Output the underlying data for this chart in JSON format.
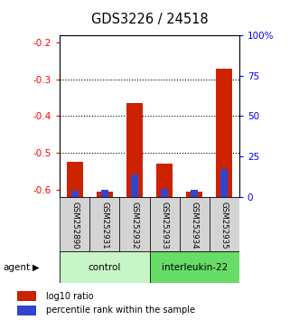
{
  "title": "GDS3226 / 24518",
  "samples": [
    "GSM252890",
    "GSM252931",
    "GSM252932",
    "GSM252933",
    "GSM252934",
    "GSM252935"
  ],
  "log10_ratio": [
    -0.525,
    -0.605,
    -0.365,
    -0.53,
    -0.605,
    -0.27
  ],
  "percentile_rank": [
    3.5,
    4.5,
    14.0,
    5.0,
    4.5,
    17.0
  ],
  "ylim_left": [
    -0.62,
    -0.18
  ],
  "ylim_right": [
    0,
    100
  ],
  "yticks_left": [
    -0.6,
    -0.5,
    -0.4,
    -0.3,
    -0.2
  ],
  "yticks_right": [
    0,
    25,
    50,
    75,
    100
  ],
  "ytick_labels_right": [
    "0",
    "25",
    "50",
    "75",
    "100%"
  ],
  "groups": [
    {
      "label": "control",
      "start": 0,
      "end": 2,
      "color": "#c8f5c8"
    },
    {
      "label": "interleukin-22",
      "start": 3,
      "end": 5,
      "color": "#66dd66"
    }
  ],
  "bar_color_red": "#cc2200",
  "bar_color_blue": "#3344cc",
  "bar_width": 0.55,
  "blue_bar_width": 0.25,
  "gridlines": [
    -0.3,
    -0.4,
    -0.5
  ],
  "legend_items": [
    {
      "label": "log10 ratio",
      "color": "#cc2200"
    },
    {
      "label": "percentile rank within the sample",
      "color": "#3344cc"
    }
  ]
}
